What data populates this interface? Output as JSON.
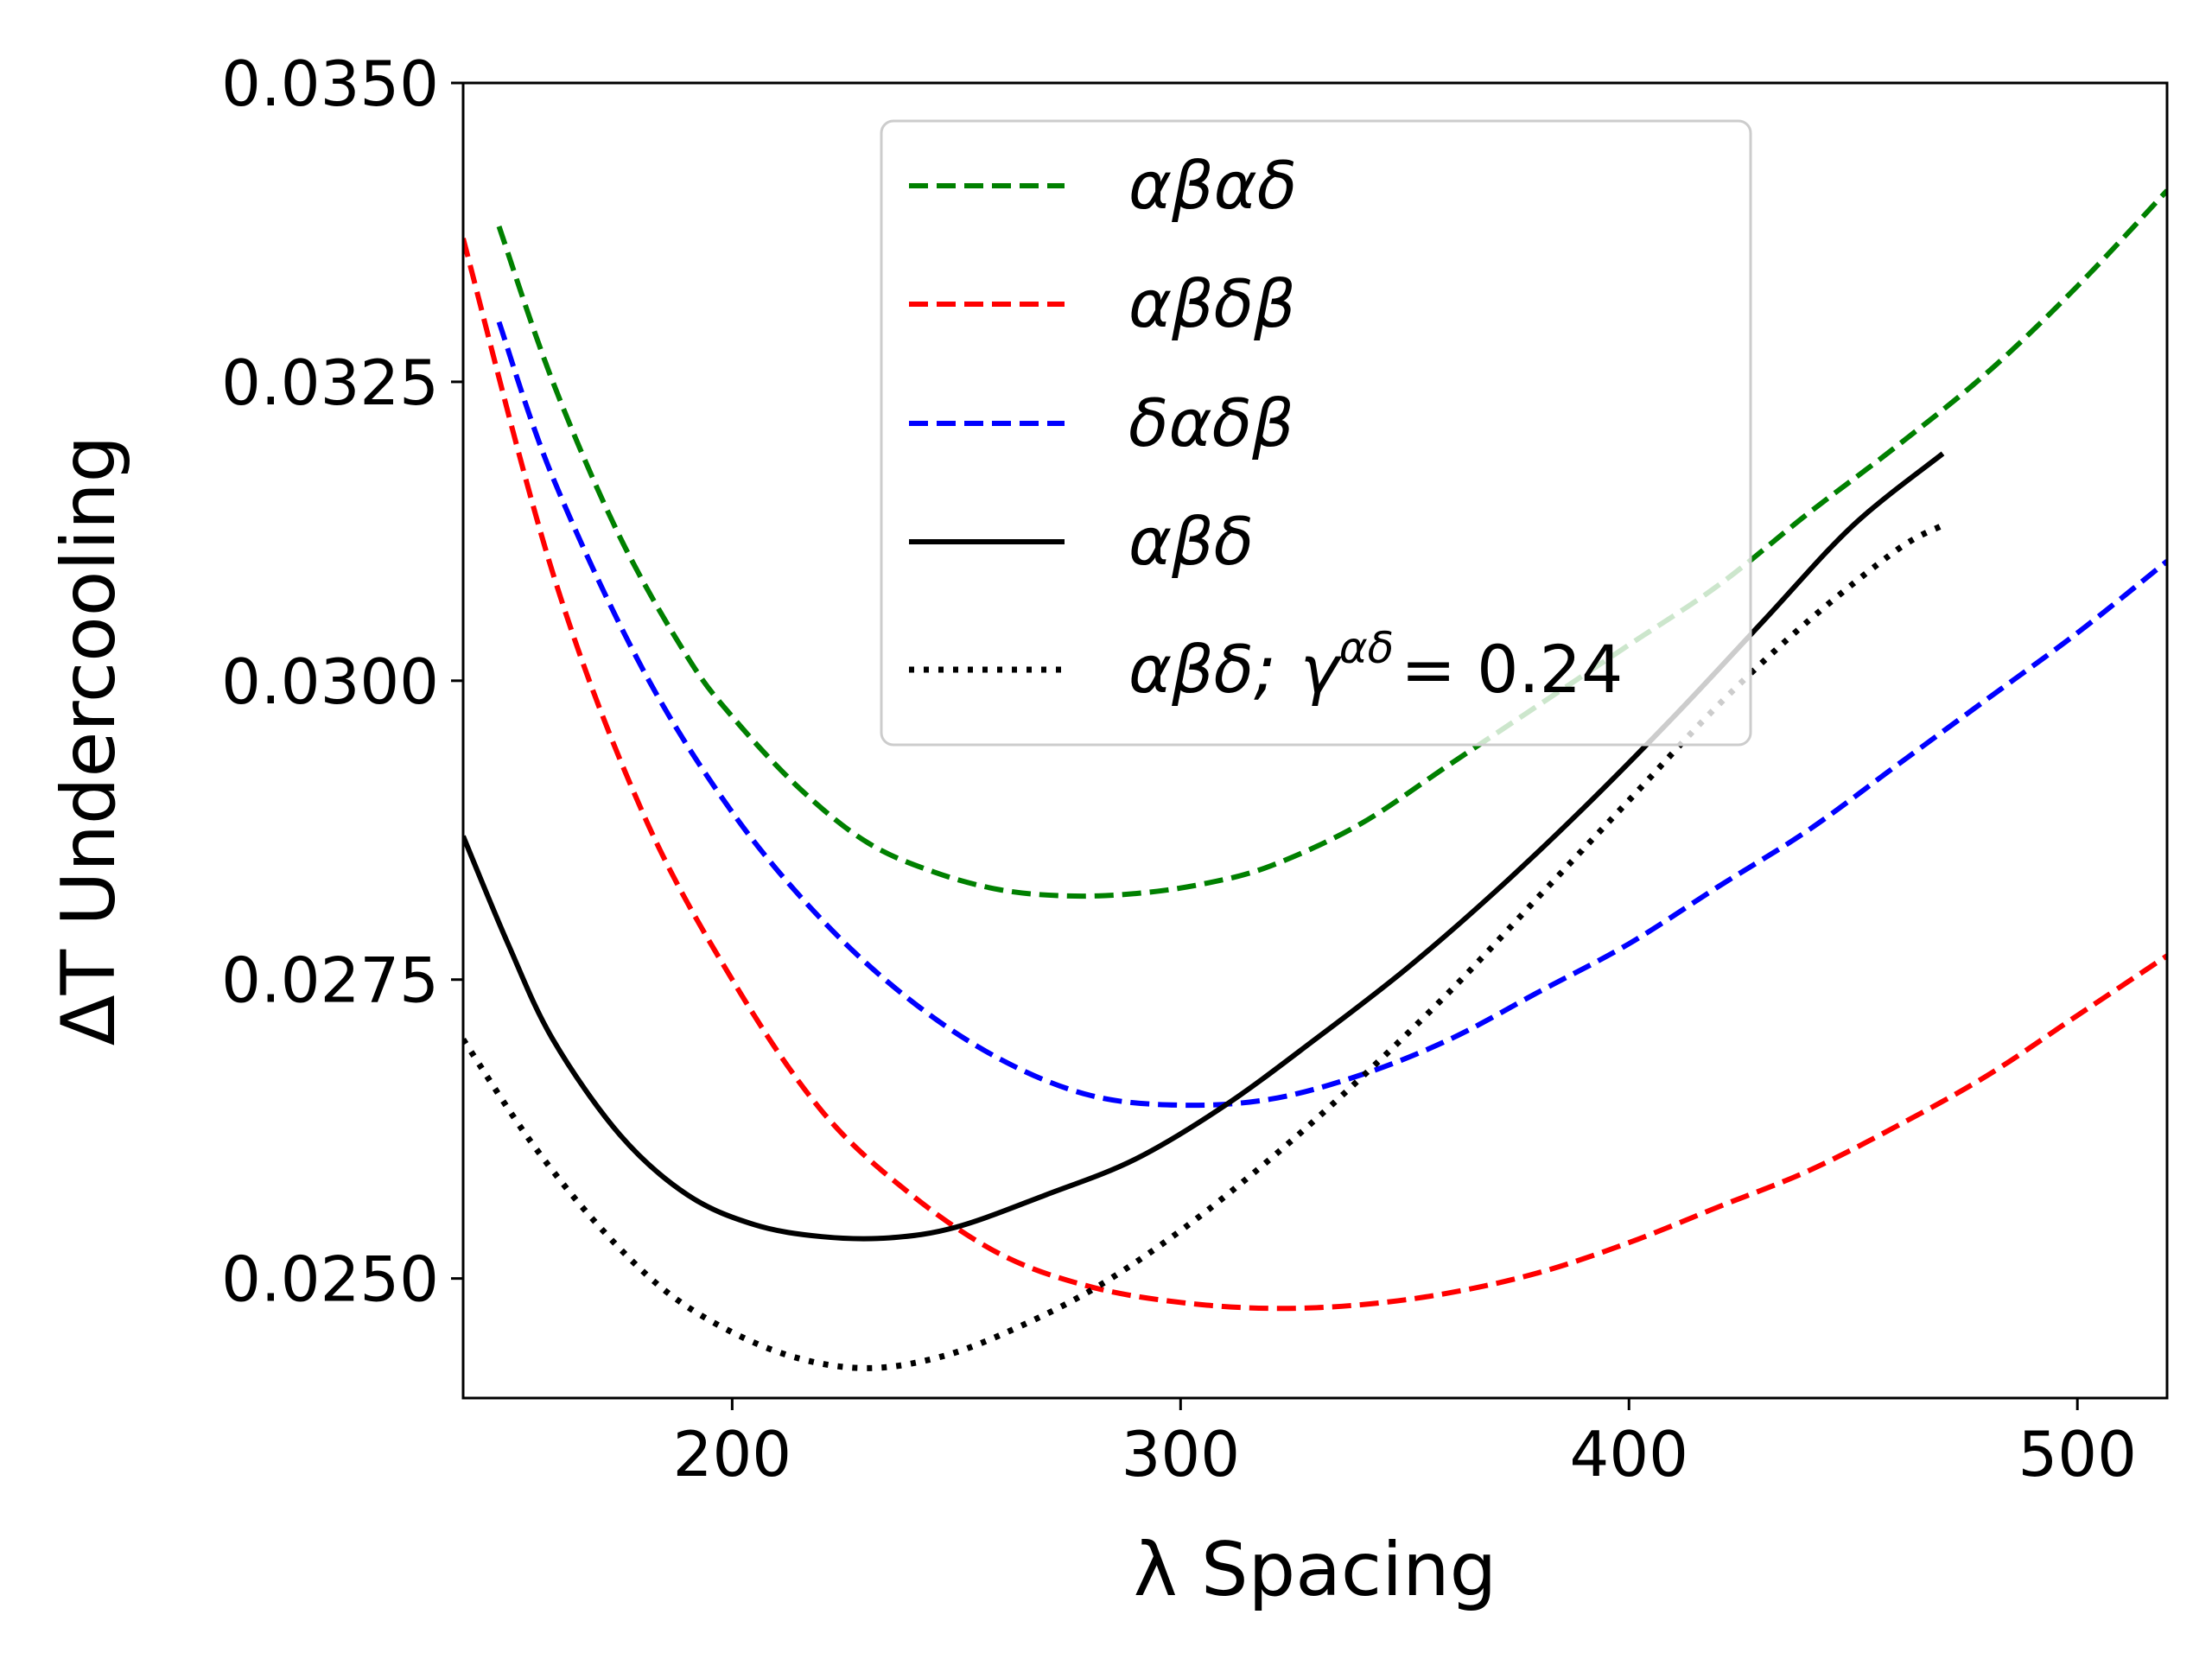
{
  "chart_data": {
    "type": "line",
    "title": "",
    "xlabel": "λ Spacing",
    "ylabel": "ΔT Undercooling",
    "xlim": [
      140,
      520
    ],
    "ylim": [
      0.024,
      0.035
    ],
    "xticks": [
      200,
      300,
      400,
      500
    ],
    "xtick_labels": [
      "200",
      "300",
      "400",
      "500"
    ],
    "yticks": [
      0.025,
      0.0275,
      0.03,
      0.0325,
      0.035
    ],
    "ytick_labels": [
      "0.0250",
      "0.0275",
      "0.0300",
      "0.0325",
      "0.0350"
    ],
    "grid": false,
    "legend_position": "upper-center",
    "series": [
      {
        "name": "αβαδ",
        "color": "#008000",
        "dash": "dashed",
        "x": [
          148,
          160,
          175,
          190,
          200,
          215,
          230,
          245,
          260,
          275,
          290,
          305,
          320,
          340,
          360,
          380,
          400,
          420,
          440,
          460,
          480,
          500,
          520
        ],
        "y": [
          0.0338,
          0.0325,
          0.0312,
          0.0302,
          0.0297,
          0.0291,
          0.02865,
          0.0284,
          0.02825,
          0.0282,
          0.02822,
          0.0283,
          0.02845,
          0.0288,
          0.0293,
          0.0298,
          0.0303,
          0.0308,
          0.0314,
          0.03197,
          0.03258,
          0.0333,
          0.0341
        ]
      },
      {
        "name": "αβδβ",
        "color": "#ff0000",
        "dash": "dashed",
        "x": [
          140,
          160,
          180,
          200,
          220,
          240,
          260,
          280,
          300,
          320,
          340,
          360,
          380,
          400,
          420,
          440,
          460,
          480,
          500,
          520
        ],
        "y": [
          0.0337,
          0.0309,
          0.0289,
          0.0275,
          0.0264,
          0.0257,
          0.0252,
          0.02493,
          0.0248,
          0.02475,
          0.02478,
          0.02488,
          0.02505,
          0.0253,
          0.0256,
          0.0259,
          0.02628,
          0.0267,
          0.0272,
          0.0277
        ]
      },
      {
        "name": "δαδβ",
        "color": "#0000ff",
        "dash": "dashed",
        "x": [
          148,
          160,
          180,
          200,
          220,
          240,
          260,
          280,
          300,
          320,
          340,
          360,
          380,
          400,
          420,
          440,
          460,
          480,
          500,
          520
        ],
        "y": [
          0.033,
          0.0317,
          0.0301,
          0.0289,
          0.028,
          0.02732,
          0.02683,
          0.02653,
          0.02645,
          0.0265,
          0.0267,
          0.027,
          0.0274,
          0.0278,
          0.02828,
          0.02875,
          0.0293,
          0.02985,
          0.0304,
          0.031
        ]
      },
      {
        "name": "αβδ",
        "color": "#000000",
        "dash": "solid",
        "x": [
          140,
          150,
          160,
          175,
          190,
          205,
          220,
          235,
          250,
          270,
          290,
          310,
          330,
          350,
          370,
          390,
          410,
          430,
          450,
          470
        ],
        "y": [
          0.0287,
          0.0278,
          0.027,
          0.0262,
          0.0257,
          0.02545,
          0.02535,
          0.02534,
          0.02543,
          0.0257,
          0.026,
          0.02645,
          0.027,
          0.02758,
          0.02823,
          0.02894,
          0.0297,
          0.0305,
          0.0313,
          0.0319
        ]
      },
      {
        "name": "αβδ; γ^{αδ} = 0.24",
        "color": "#000000",
        "dash": "dotted",
        "x": [
          140,
          155,
          170,
          185,
          200,
          215,
          230,
          245,
          260,
          280,
          300,
          320,
          340,
          360,
          380,
          400,
          420,
          440,
          460,
          470
        ],
        "y": [
          0.027,
          0.02615,
          0.02545,
          0.0249,
          0.02455,
          0.02433,
          0.02425,
          0.02433,
          0.02453,
          0.0249,
          0.0254,
          0.026,
          0.02667,
          0.0274,
          0.0282,
          0.029,
          0.0298,
          0.0305,
          0.0311,
          0.0313
        ]
      }
    ]
  },
  "legend": {
    "entries": [
      {
        "label": "αβαδ",
        "math_tail": "",
        "superscript": "",
        "value": ""
      },
      {
        "label": "αβδβ",
        "math_tail": "",
        "superscript": "",
        "value": ""
      },
      {
        "label": "δαδβ",
        "math_tail": "",
        "superscript": "",
        "value": ""
      },
      {
        "label": "αβδ",
        "math_tail": "",
        "superscript": "",
        "value": ""
      },
      {
        "label": "αβδ;",
        "math_tail": "γ",
        "superscript": "αδ",
        "value": "= 0.24"
      }
    ]
  }
}
